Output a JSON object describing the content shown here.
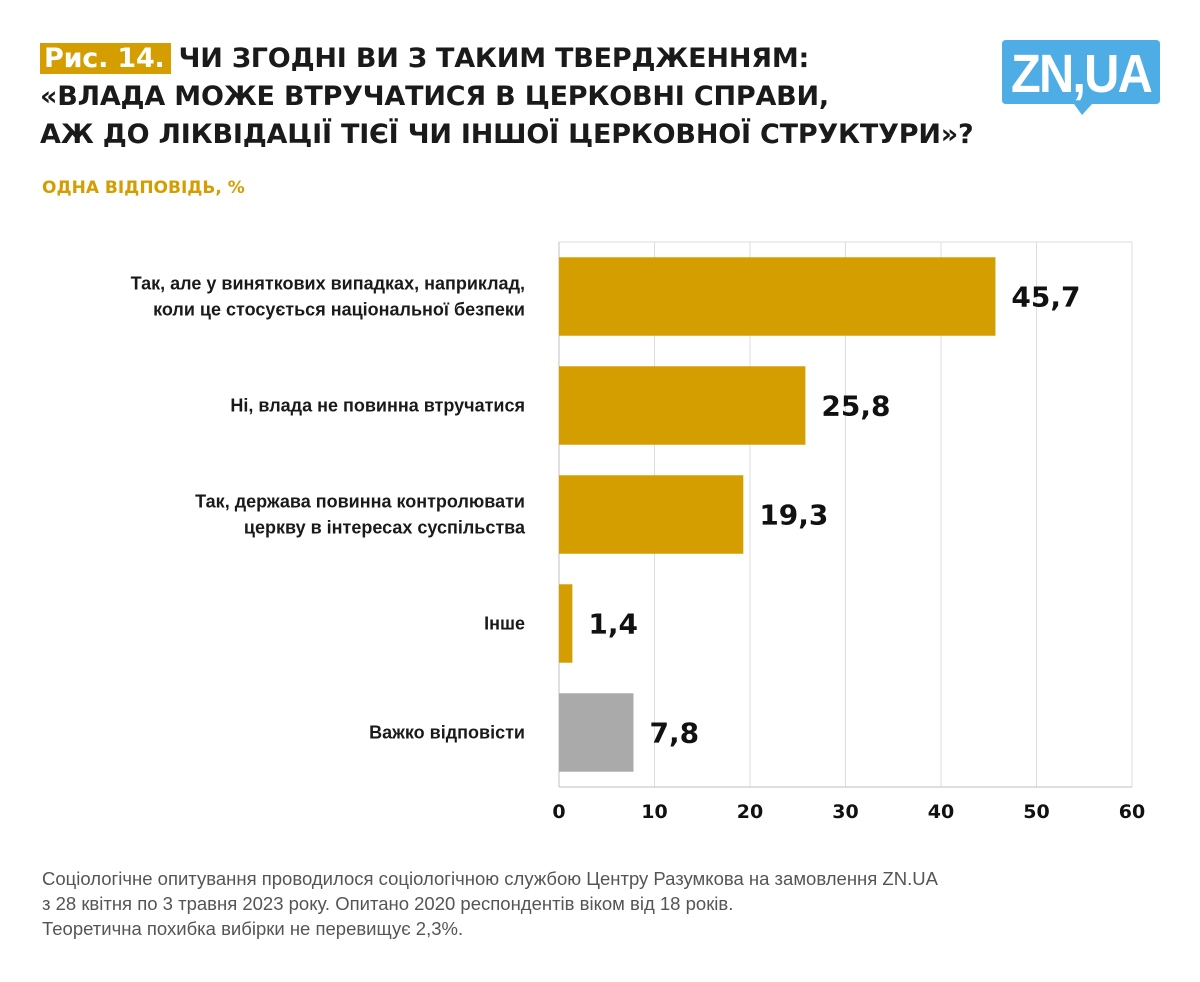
{
  "header": {
    "figure_label": "Рис. 14.",
    "title_lines": [
      "ЧИ ЗГОДНІ ВИ З ТАКИМ ТВЕРДЖЕННЯМ:",
      "«ВЛАДА МОЖЕ ВТРУЧАТИСЯ В ЦЕРКОВНІ СПРАВИ,",
      "АЖ ДО ЛІКВІДАЦІЇ ТІЄЇ ЧИ ІНШОЇ ЦЕРКОВНОЇ СТРУКТУРИ»?"
    ],
    "subtitle": "ОДНА ВІДПОВІДЬ, %"
  },
  "logo": {
    "text": "ZN,UA",
    "color": "#4FADE6"
  },
  "colors": {
    "accent": "#D49E00",
    "neutral": "#AAAAAA",
    "grid": "#DDDDDD"
  },
  "chart_data": {
    "type": "bar",
    "orientation": "horizontal",
    "title": "ЧИ ЗГОДНІ ВИ З ТАКИМ ТВЕРДЖЕННЯМ: «ВЛАДА МОЖЕ ВТРУЧАТИСЯ В ЦЕРКОВНІ СПРАВИ, АЖ ДО ЛІКВІДАЦІЇ ТІЄЇ ЧИ ІНШОЇ ЦЕРКОВНОЇ СТРУКТУРИ»?",
    "subtitle": "ОДНА ВІДПОВІДЬ, %",
    "categories": [
      [
        "Так, але у виняткових випадках, наприклад,",
        "коли це стосується національної безпеки"
      ],
      [
        "Ні, влада не повинна втручатися"
      ],
      [
        "Так, держава повинна контролювати",
        "церкву в інтересах суспільства"
      ],
      [
        "Інше"
      ],
      [
        "Важко відповісти"
      ]
    ],
    "values": [
      45.7,
      25.8,
      19.3,
      1.4,
      7.8
    ],
    "value_labels": [
      "45,7",
      "25,8",
      "19,3",
      "1,4",
      "7,8"
    ],
    "bar_colors": [
      "#D49E00",
      "#D49E00",
      "#D49E00",
      "#D49E00",
      "#AAAAAA"
    ],
    "xlim": [
      0,
      60
    ],
    "xticks": [
      0,
      10,
      20,
      30,
      40,
      50,
      60
    ],
    "xtick_labels": [
      "0",
      "10",
      "20",
      "30",
      "40",
      "50",
      "60"
    ],
    "xlabel": "",
    "ylabel": "",
    "grid": true,
    "legend": "none"
  },
  "footnote": {
    "lines": [
      "Соціологічне опитування проводилося соціологічною службою Центру Разумкова на замовлення ZN.UA",
      "з 28 квітня по 3 травня 2023 року. Опитано 2020 респондентів віком від 18 років.",
      "Теоретична похибка вибірки не перевищує 2,3%."
    ]
  }
}
